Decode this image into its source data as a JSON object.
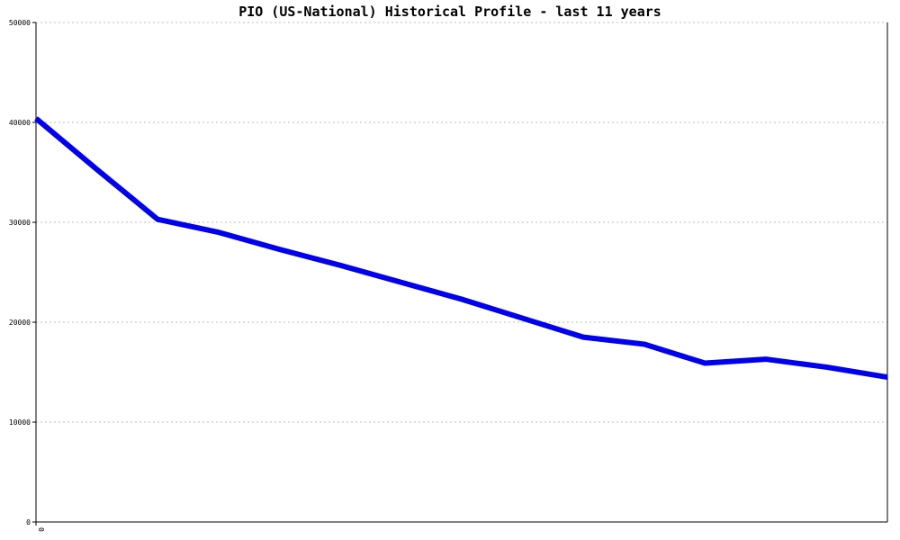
{
  "chart_data": {
    "type": "line",
    "title": "PIO (US-National) Historical Profile - last 11 years",
    "xlabel": "",
    "ylabel": "",
    "ylim": [
      0,
      50000
    ],
    "yticks": [
      0,
      10000,
      20000,
      30000,
      40000,
      50000
    ],
    "ytick_labels": [
      "0",
      "10000",
      "20000",
      "30000",
      "40000",
      "50000"
    ],
    "xtick_labels": [
      "0"
    ],
    "grid": true,
    "line_color": "#0000ee",
    "series": [
      {
        "values": [
          40400,
          35300,
          30300,
          29000,
          27300,
          25700,
          24000,
          22300,
          20400,
          18500,
          17800,
          15900,
          16300,
          15500,
          14500
        ]
      }
    ]
  }
}
